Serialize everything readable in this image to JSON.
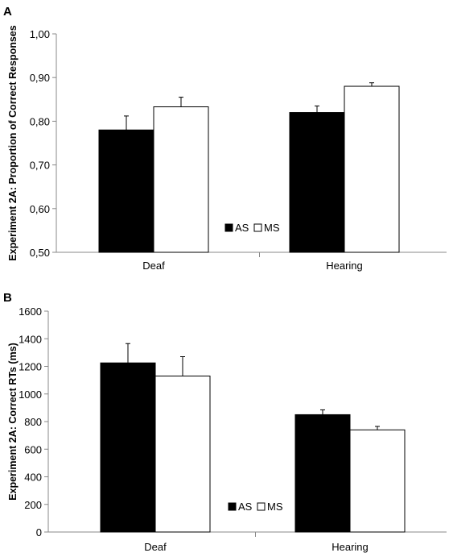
{
  "chart_data": [
    {
      "type": "bar",
      "panel_label": "A",
      "ylabel": "Experiment 2A: Proportion of Correct Responses",
      "xlabel": "",
      "categories": [
        "Deaf",
        "Hearing"
      ],
      "ylim": [
        0.5,
        1.0
      ],
      "yticks": [
        "0,50",
        "0,60",
        "0,70",
        "0,80",
        "0,90",
        "1,00"
      ],
      "ytick_values": [
        0.5,
        0.6,
        0.7,
        0.8,
        0.9,
        1.0
      ],
      "series": [
        {
          "name": "AS",
          "color": "#000000",
          "values": [
            0.78,
            0.82
          ],
          "errors": [
            0.032,
            0.015
          ]
        },
        {
          "name": "MS",
          "color": "#ffffff",
          "values": [
            0.833,
            0.88
          ],
          "errors": [
            0.022,
            0.008
          ]
        }
      ],
      "legend_placement": "bottom-center",
      "grid": false
    },
    {
      "type": "bar",
      "panel_label": "B",
      "ylabel": "Experiment 2A: Correct RTs (ms)",
      "xlabel": "",
      "categories": [
        "Deaf",
        "Hearing"
      ],
      "ylim": [
        0,
        1600
      ],
      "yticks": [
        "0",
        "200",
        "400",
        "600",
        "800",
        "1000",
        "1200",
        "1400",
        "1600"
      ],
      "ytick_values": [
        0,
        200,
        400,
        600,
        800,
        1000,
        1200,
        1400,
        1600
      ],
      "series": [
        {
          "name": "AS",
          "color": "#000000",
          "values": [
            1225,
            850
          ],
          "errors": [
            140,
            35
          ]
        },
        {
          "name": "MS",
          "color": "#ffffff",
          "values": [
            1130,
            740
          ],
          "errors": [
            140,
            25
          ]
        }
      ],
      "legend_placement": "bottom-center",
      "grid": false
    }
  ]
}
